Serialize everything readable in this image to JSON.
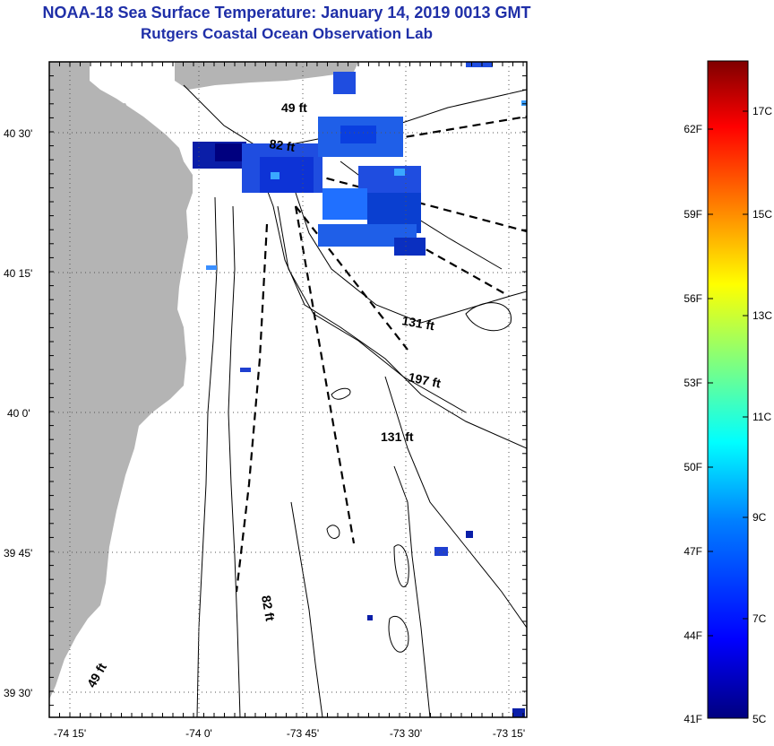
{
  "header": {
    "title": "NOAA-18 Sea Surface Temperature:  January 14, 2019 0013 GMT",
    "subtitle": "Rutgers Coastal Ocean Observation Lab"
  },
  "map": {
    "lat_labels": [
      "40 30'",
      "40 15'",
      "40 0'",
      "39 45'",
      "39 30'"
    ],
    "lon_labels": [
      "-74 15'",
      "-74 0'",
      "-73 45'",
      "-73 30'",
      "-73 15'"
    ],
    "depth_labels": [
      "49 ft",
      "82 ft",
      "131 ft",
      "197 ft",
      "131 ft",
      "82 ft",
      "49 ft"
    ],
    "colors": {
      "land": "#b4b4b4",
      "water": "#ffffff",
      "contour": "#000000",
      "grid": "#555555"
    }
  },
  "colorbar": {
    "f_labels": [
      "62F",
      "59F",
      "56F",
      "53F",
      "50F",
      "47F",
      "44F",
      "41F"
    ],
    "c_labels": [
      "17C",
      "15C",
      "13C",
      "11C",
      "9C",
      "7C",
      "5C"
    ],
    "range_f": [
      41,
      64
    ],
    "colors": [
      "#00007f",
      "#0000ff",
      "#007fff",
      "#00ffff",
      "#7fff7f",
      "#ffff00",
      "#ff7f00",
      "#ff0000",
      "#7f0000"
    ]
  }
}
